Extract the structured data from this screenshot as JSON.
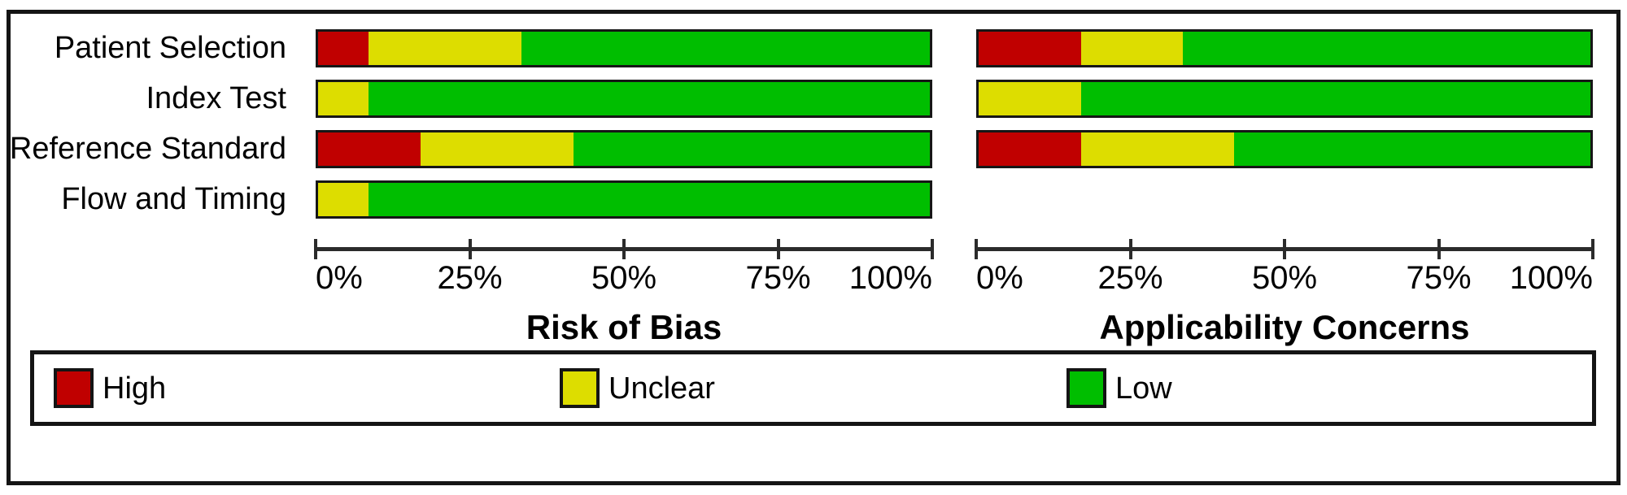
{
  "figure": {
    "kind": "QUADAS-2 methodological quality summary figure",
    "colors": {
      "high": "#c00000",
      "unclear": "#dddd00",
      "low": "#00be00",
      "frame": "#141414",
      "axis": "#2b2b2b"
    }
  },
  "chart_data": {
    "type": "bar",
    "subtype": "stacked-horizontal-100percent",
    "categories": [
      "Patient Selection",
      "Index Test",
      "Reference Standard",
      "Flow and Timing"
    ],
    "legend": [
      {
        "label": "High",
        "color": "#c00000"
      },
      {
        "label": "Unclear",
        "color": "#dddd00"
      },
      {
        "label": "Low",
        "color": "#00be00"
      }
    ],
    "x_ticks": [
      "0%",
      "25%",
      "50%",
      "75%",
      "100%"
    ],
    "xlim": [
      0,
      100
    ],
    "grid": false,
    "legend_position": "bottom",
    "panels": [
      {
        "title": "Risk of Bias",
        "series_order": [
          "High",
          "Unclear",
          "Low"
        ],
        "rows": [
          {
            "category": "Patient Selection",
            "values": [
              8.3,
              25.0,
              66.7
            ]
          },
          {
            "category": "Index Test",
            "values": [
              0,
              8.3,
              91.7
            ]
          },
          {
            "category": "Reference Standard",
            "values": [
              16.7,
              25.0,
              58.3
            ]
          },
          {
            "category": "Flow and Timing",
            "values": [
              0,
              8.3,
              91.7
            ]
          }
        ]
      },
      {
        "title": "Applicability Concerns",
        "series_order": [
          "High",
          "Unclear",
          "Low"
        ],
        "rows": [
          {
            "category": "Patient Selection",
            "values": [
              16.7,
              16.7,
              66.6
            ]
          },
          {
            "category": "Index Test",
            "values": [
              0,
              16.7,
              83.3
            ]
          },
          {
            "category": "Reference Standard",
            "values": [
              16.7,
              25.0,
              58.3
            ]
          },
          {
            "category": "Flow and Timing",
            "values": null
          }
        ]
      }
    ]
  }
}
